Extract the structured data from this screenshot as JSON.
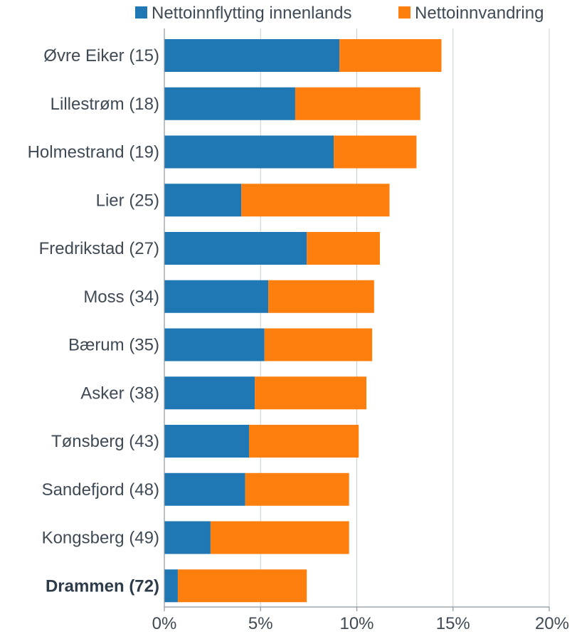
{
  "chart_data": {
    "type": "bar",
    "orientation": "horizontal",
    "stacked": true,
    "categories": [
      "Øvre Eiker (15)",
      "Lillestrøm (18)",
      "Holmestrand (19)",
      "Lier (25)",
      "Fredrikstad (27)",
      "Moss (34)",
      "Bærum (35)",
      "Asker (38)",
      "Tønsberg (43)",
      "Sandefjord (48)",
      "Kongsberg (49)",
      "Drammen (72)"
    ],
    "highlight_category": "Drammen (72)",
    "series": [
      {
        "name": "Nettoinnflytting innenlands",
        "color": "#1f77b4",
        "values": [
          9.1,
          6.8,
          8.8,
          4.0,
          7.4,
          5.4,
          5.2,
          4.7,
          4.4,
          4.2,
          2.4,
          0.7
        ]
      },
      {
        "name": "Nettoinnvandring",
        "color": "#ff7f0e",
        "values": [
          5.3,
          6.5,
          4.3,
          7.7,
          3.8,
          5.5,
          5.6,
          5.8,
          5.7,
          5.4,
          7.2,
          6.7
        ]
      }
    ],
    "xlim": [
      0,
      20
    ],
    "xticks": [
      0,
      5,
      10,
      15,
      20
    ],
    "xtick_labels": [
      "0%",
      "5%",
      "10%",
      "15%",
      "20%"
    ],
    "grid": "vertical",
    "legend": "top-right",
    "title": "",
    "xlabel": "",
    "ylabel": ""
  }
}
